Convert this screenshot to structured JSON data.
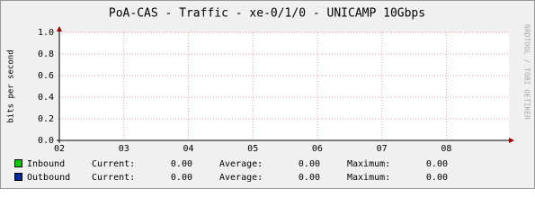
{
  "chart_data": {
    "type": "line",
    "title": "PoA-CAS - Traffic - xe-0/1/0 - UNICAMP 10Gbps",
    "y_label": "bits per second",
    "watermark": "RRDTOOL / TOBI OETIKER",
    "xlim": [
      2,
      8.97
    ],
    "xticks": [
      {
        "value": 2,
        "label": "02"
      },
      {
        "value": 3,
        "label": "03"
      },
      {
        "value": 4,
        "label": "04"
      },
      {
        "value": 5,
        "label": "05"
      },
      {
        "value": 6,
        "label": "06"
      },
      {
        "value": 7,
        "label": "07"
      },
      {
        "value": 8,
        "label": "08"
      }
    ],
    "ylim": [
      0,
      1
    ],
    "yticks": [
      {
        "value": 0,
        "label": "0.0"
      },
      {
        "value": 0.2,
        "label": "0.2"
      },
      {
        "value": 0.4,
        "label": "0.4"
      },
      {
        "value": 0.6,
        "label": "0.6"
      },
      {
        "value": 0.8,
        "label": "0.8"
      },
      {
        "value": 1,
        "label": "1.0"
      }
    ],
    "grid": true,
    "stat_names": [
      "Current:",
      "Average:",
      "Maximum:"
    ],
    "series": [
      {
        "name": "Inbound",
        "color": "#00cc00",
        "stats": [
          0,
          0,
          0
        ],
        "value_labels": [
          "0.00",
          "0.00",
          "0.00"
        ]
      },
      {
        "name": "Outbound",
        "color": "#002a97",
        "stats": [
          0,
          0,
          0
        ],
        "value_labels": [
          "0.00",
          "0.00",
          "0.00"
        ]
      }
    ]
  }
}
